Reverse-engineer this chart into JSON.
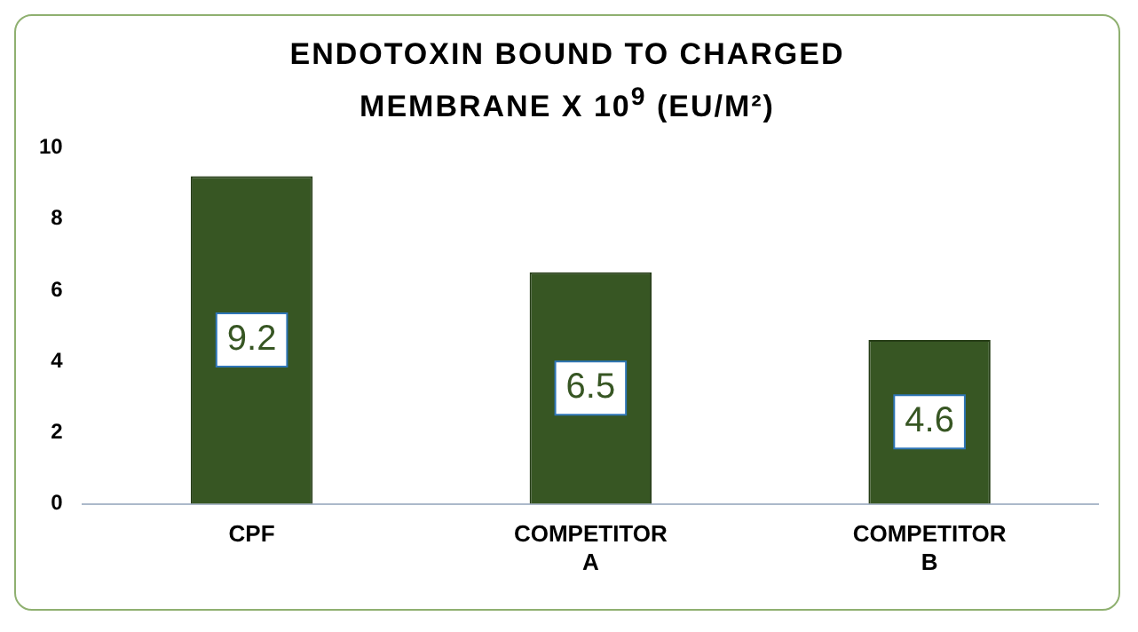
{
  "chart_data": {
    "type": "bar",
    "title": "ENDOTOXIN BOUND TO CHARGED MEMBRANE X 10$^{9}$ (EU/M²)",
    "categories": [
      "CPF",
      "COMPETITOR A",
      "COMPETITOR B"
    ],
    "values": [
      9.2,
      6.5,
      4.6
    ],
    "color": "#375623",
    "ylim": [
      0,
      10
    ],
    "yticks": [
      0,
      2,
      4,
      6,
      8,
      10
    ],
    "grid": false,
    "legend": false,
    "data_labels": true
  }
}
